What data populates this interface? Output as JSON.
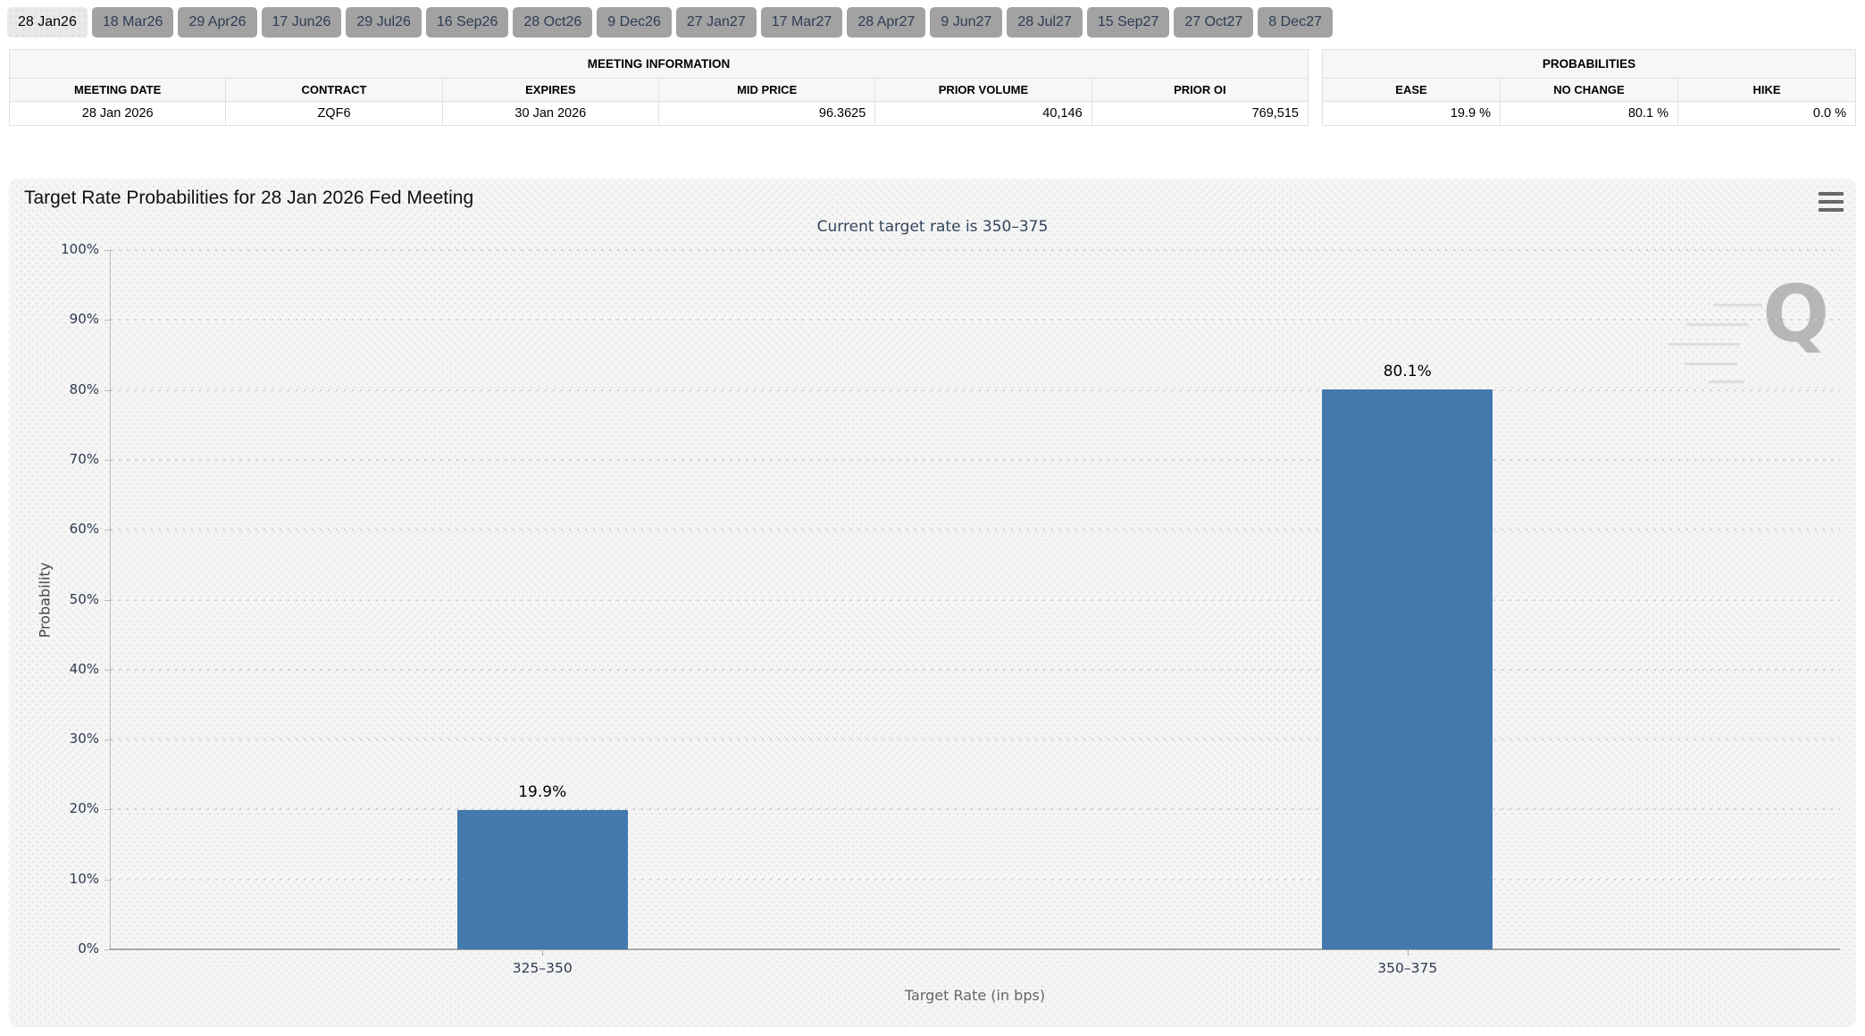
{
  "tabs": {
    "items": [
      {
        "label": "28 Jan26",
        "selected": true
      },
      {
        "label": "18 Mar26",
        "selected": false
      },
      {
        "label": "29 Apr26",
        "selected": false
      },
      {
        "label": "17 Jun26",
        "selected": false
      },
      {
        "label": "29 Jul26",
        "selected": false
      },
      {
        "label": "16 Sep26",
        "selected": false
      },
      {
        "label": "28 Oct26",
        "selected": false
      },
      {
        "label": "9 Dec26",
        "selected": false
      },
      {
        "label": "27 Jan27",
        "selected": false
      },
      {
        "label": "17 Mar27",
        "selected": false
      },
      {
        "label": "28 Apr27",
        "selected": false
      },
      {
        "label": "9 Jun27",
        "selected": false
      },
      {
        "label": "28 Jul27",
        "selected": false
      },
      {
        "label": "15 Sep27",
        "selected": false
      },
      {
        "label": "27 Oct27",
        "selected": false
      },
      {
        "label": "8 Dec27",
        "selected": false
      }
    ]
  },
  "meeting_info": {
    "title": "MEETING INFORMATION",
    "columns": [
      "MEETING DATE",
      "CONTRACT",
      "EXPIRES",
      "MID PRICE",
      "PRIOR VOLUME",
      "PRIOR OI"
    ],
    "values": [
      "28 Jan 2026",
      "ZQF6",
      "30 Jan 2026",
      "96.3625",
      "40,146",
      "769,515"
    ]
  },
  "probabilities": {
    "title": "PROBABILITIES",
    "columns": [
      "EASE",
      "NO CHANGE",
      "HIKE"
    ],
    "values": [
      "19.9 %",
      "80.1 %",
      "0.0 %"
    ]
  },
  "chart_data": {
    "type": "bar",
    "title": "Target Rate Probabilities for 28 Jan 2026 Fed Meeting",
    "subtitle": "Current target rate is 350–375",
    "categories": [
      "325–350",
      "350–375"
    ],
    "values": [
      19.9,
      80.1
    ],
    "value_labels": [
      "19.9%",
      "80.1%"
    ],
    "xlabel": "Target Rate (in bps)",
    "ylabel": "Probability",
    "ylim": [
      0,
      100
    ],
    "ytick_step": 10,
    "ytick_suffix": "%",
    "grid": true,
    "legend": false,
    "bar_color": "#4379ad",
    "watermark": "Q"
  },
  "icons": {
    "context_menu": "hamburger-menu-icon"
  }
}
